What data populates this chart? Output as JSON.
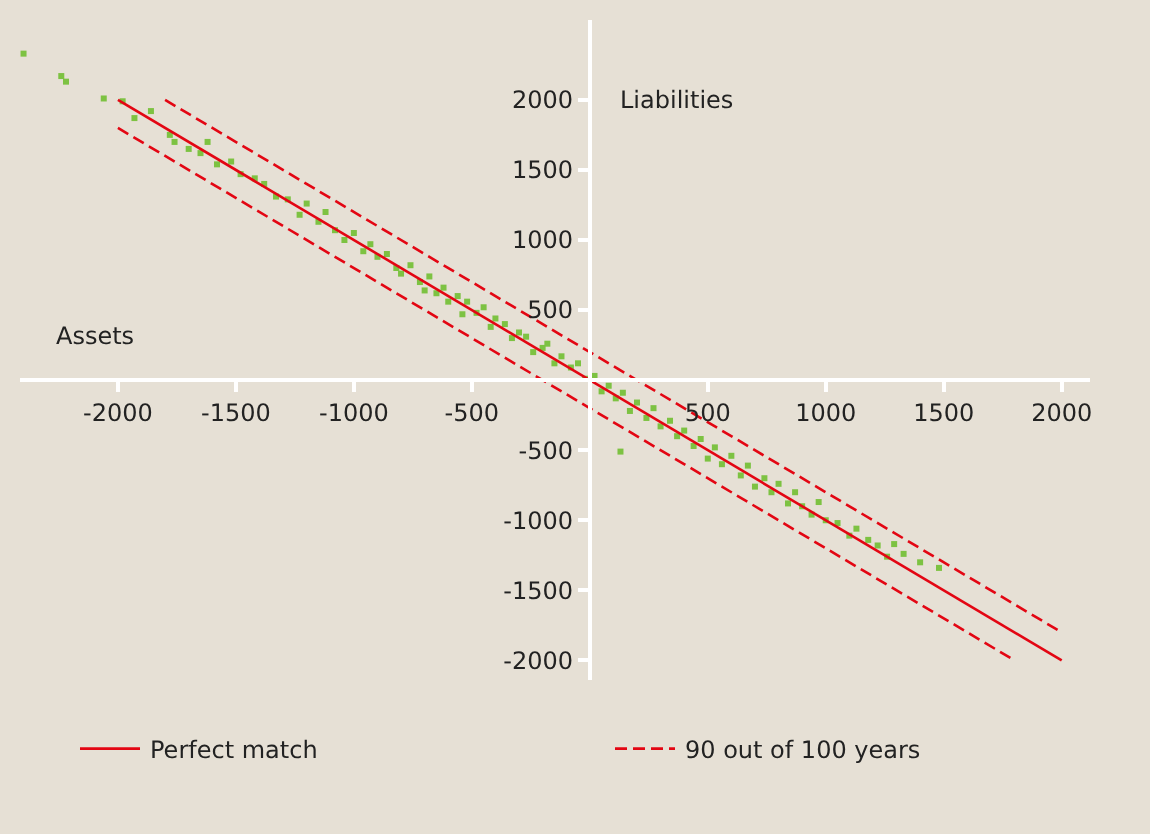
{
  "chart_data": {
    "type": "scatter",
    "xlabel": "Assets",
    "ylabel": "Liabilities",
    "xlim": [
      -2415,
      2120
    ],
    "ylim": [
      -2140,
      2570
    ],
    "xticks": [
      -2000,
      -1500,
      -1000,
      -500,
      500,
      1000,
      1500,
      2000
    ],
    "yticks": [
      -2000,
      -1500,
      -1000,
      -500,
      500,
      1000,
      1500,
      2000
    ],
    "grid": false,
    "legend": "bottom",
    "series": [
      {
        "color": "#7dc242",
        "marker": "square",
        "x": [
          -2400,
          -2240,
          -2220,
          -2060,
          -1980,
          -1930,
          -1860,
          -1780,
          -1760,
          -1700,
          -1650,
          -1620,
          -1580,
          -1520,
          -1480,
          -1420,
          -1380,
          -1330,
          -1280,
          -1230,
          -1200,
          -1150,
          -1120,
          -1080,
          -1040,
          -1000,
          -960,
          -930,
          -900,
          -860,
          -820,
          -800,
          -760,
          -720,
          -700,
          -680,
          -650,
          -620,
          -600,
          -560,
          -540,
          -520,
          -480,
          -450,
          -420,
          -400,
          -360,
          -330,
          -300,
          -270,
          -240,
          -200,
          -180,
          -150,
          -120,
          -80,
          -50,
          -20,
          20,
          50,
          80,
          110,
          130,
          140,
          170,
          200,
          240,
          270,
          300,
          340,
          370,
          400,
          440,
          470,
          500,
          530,
          560,
          600,
          640,
          670,
          700,
          740,
          770,
          800,
          840,
          870,
          900,
          940,
          970,
          1000,
          1050,
          1100,
          1130,
          1180,
          1220,
          1260,
          1290,
          1330,
          1400,
          1480
        ],
        "values": [
          2330,
          2170,
          2130,
          2010,
          1990,
          1870,
          1920,
          1750,
          1700,
          1650,
          1620,
          1700,
          1540,
          1560,
          1470,
          1440,
          1400,
          1310,
          1290,
          1180,
          1260,
          1130,
          1200,
          1070,
          1000,
          1050,
          920,
          970,
          880,
          900,
          800,
          760,
          820,
          700,
          640,
          740,
          620,
          660,
          560,
          600,
          470,
          560,
          480,
          520,
          380,
          440,
          400,
          300,
          340,
          310,
          200,
          230,
          260,
          120,
          170,
          90,
          120,
          10,
          30,
          -80,
          -40,
          -130,
          -510,
          -90,
          -220,
          -160,
          -270,
          -200,
          -330,
          -290,
          -400,
          -360,
          -470,
          -420,
          -560,
          -480,
          -600,
          -540,
          -680,
          -610,
          -760,
          -700,
          -800,
          -740,
          -880,
          -800,
          -900,
          -960,
          -870,
          -1000,
          -1020,
          -1110,
          -1060,
          -1140,
          -1180,
          -1260,
          -1170,
          -1240,
          -1300,
          -1340
        ]
      },
      {
        "type": "line",
        "name": "Perfect match",
        "color": "#e30613",
        "line_style": "solid",
        "x": [
          -2000,
          2000
        ],
        "values": [
          2000,
          -2000
        ]
      },
      {
        "type": "line",
        "name": "90 out of 100 years",
        "color": "#e30613",
        "line_style": "dashed",
        "x": [
          -1800,
          2000
        ],
        "values": [
          2000,
          -1800
        ]
      },
      {
        "type": "line",
        "color": "#e30613",
        "line_style": "dashed",
        "x": [
          -2000,
          1800
        ],
        "values": [
          1800,
          -2000
        ]
      }
    ]
  }
}
